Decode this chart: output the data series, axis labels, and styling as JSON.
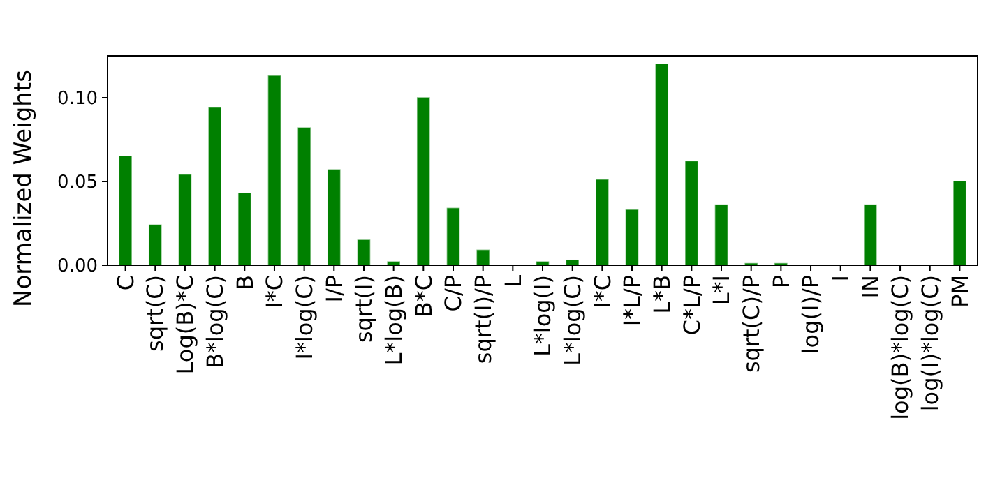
{
  "chart_data": {
    "type": "bar",
    "ylabel": "Normalized Weights",
    "categories": [
      "C",
      "sqrt(C)",
      "Log(B)*C",
      "B*log(C)",
      "B",
      "I*C",
      "I*log(C)",
      "I/P",
      "sqrt(I)",
      "L*log(B)",
      "B*C",
      "C/P",
      "sqrt(I)/P",
      "L",
      "L*log(I)",
      "L*log(C)",
      "I*C",
      "I*L/P",
      "L*B",
      "C*L/P",
      "L*I",
      "sqrt(C)/P",
      "P",
      "log(I)/P",
      "I",
      "IN",
      "log(B)*log(C)",
      "log(I)*log(C)",
      "PM"
    ],
    "values": [
      0.065,
      0.024,
      0.054,
      0.094,
      0.043,
      0.113,
      0.082,
      0.057,
      0.015,
      0.002,
      0.1,
      0.034,
      0.009,
      0,
      0.002,
      0.003,
      0.051,
      0.033,
      0.12,
      0.062,
      0.036,
      0.001,
      0.001,
      0,
      0,
      0.036,
      0,
      0,
      0.05
    ],
    "color": "#008000",
    "ylim": [
      0,
      0.125
    ],
    "yticks": [
      {
        "value": 0,
        "label": "0.00"
      },
      {
        "value": 0.05,
        "label": "0.05"
      },
      {
        "value": 0.1,
        "label": "0.10"
      }
    ],
    "grid": false
  }
}
